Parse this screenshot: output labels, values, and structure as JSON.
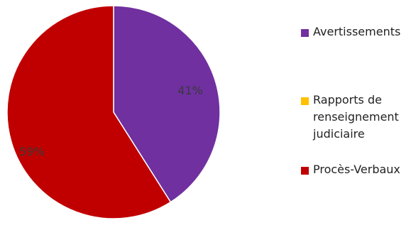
{
  "chart_data": {
    "type": "pie",
    "slices": [
      {
        "label": "Avertissements",
        "value": 41,
        "display": "41%",
        "color": "#7030A0"
      },
      {
        "label": "Rapports de renseignement judiciaire",
        "value": 0,
        "display": "",
        "color": "#FFC000"
      },
      {
        "label": "Procès-Verbaux",
        "value": 59,
        "display": "59%",
        "color": "#C00000"
      }
    ],
    "start_angle_deg": 0,
    "direction": "clockwise",
    "legend_position": "right",
    "title": ""
  },
  "legend": {
    "items": [
      {
        "label": "Avertissements",
        "color": "#7030A0"
      },
      {
        "label": "Rapports de\nrenseignement\njudiciaire",
        "color": "#FFC000"
      },
      {
        "label": "Procès-Verbaux",
        "color": "#C00000"
      }
    ]
  }
}
